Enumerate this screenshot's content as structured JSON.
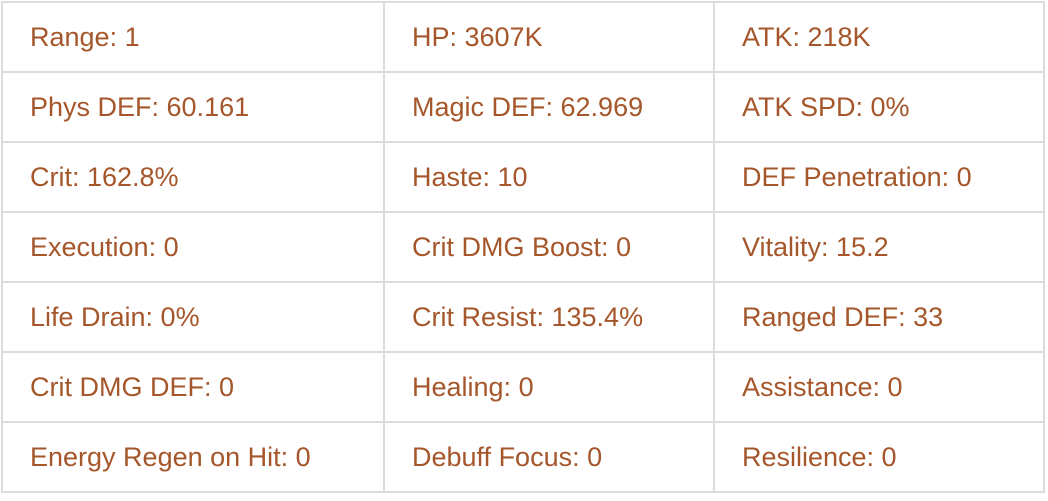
{
  "theme": {
    "text_color": "#a5562a",
    "border_color": "#dcdcdc",
    "background": "#ffffff"
  },
  "stats_table": {
    "rows": [
      {
        "cells": [
          "Range: 1",
          "HP: 3607K",
          "ATK: 218K"
        ]
      },
      {
        "cells": [
          "Phys DEF: 60.161",
          "Magic DEF: 62.969",
          "ATK SPD: 0%"
        ]
      },
      {
        "cells": [
          "Crit: 162.8%",
          "Haste: 10",
          "DEF Penetration: 0"
        ]
      },
      {
        "cells": [
          "Execution: 0",
          "Crit DMG Boost: 0",
          "Vitality: 15.2"
        ]
      },
      {
        "cells": [
          "Life Drain: 0%",
          "Crit Resist: 135.4%",
          "Ranged DEF: 33"
        ]
      },
      {
        "cells": [
          "Crit DMG DEF: 0",
          "Healing: 0",
          "Assistance: 0"
        ]
      },
      {
        "cells": [
          "Energy Regen on Hit: 0",
          "Debuff Focus: 0",
          "Resilience: 0"
        ]
      }
    ]
  }
}
